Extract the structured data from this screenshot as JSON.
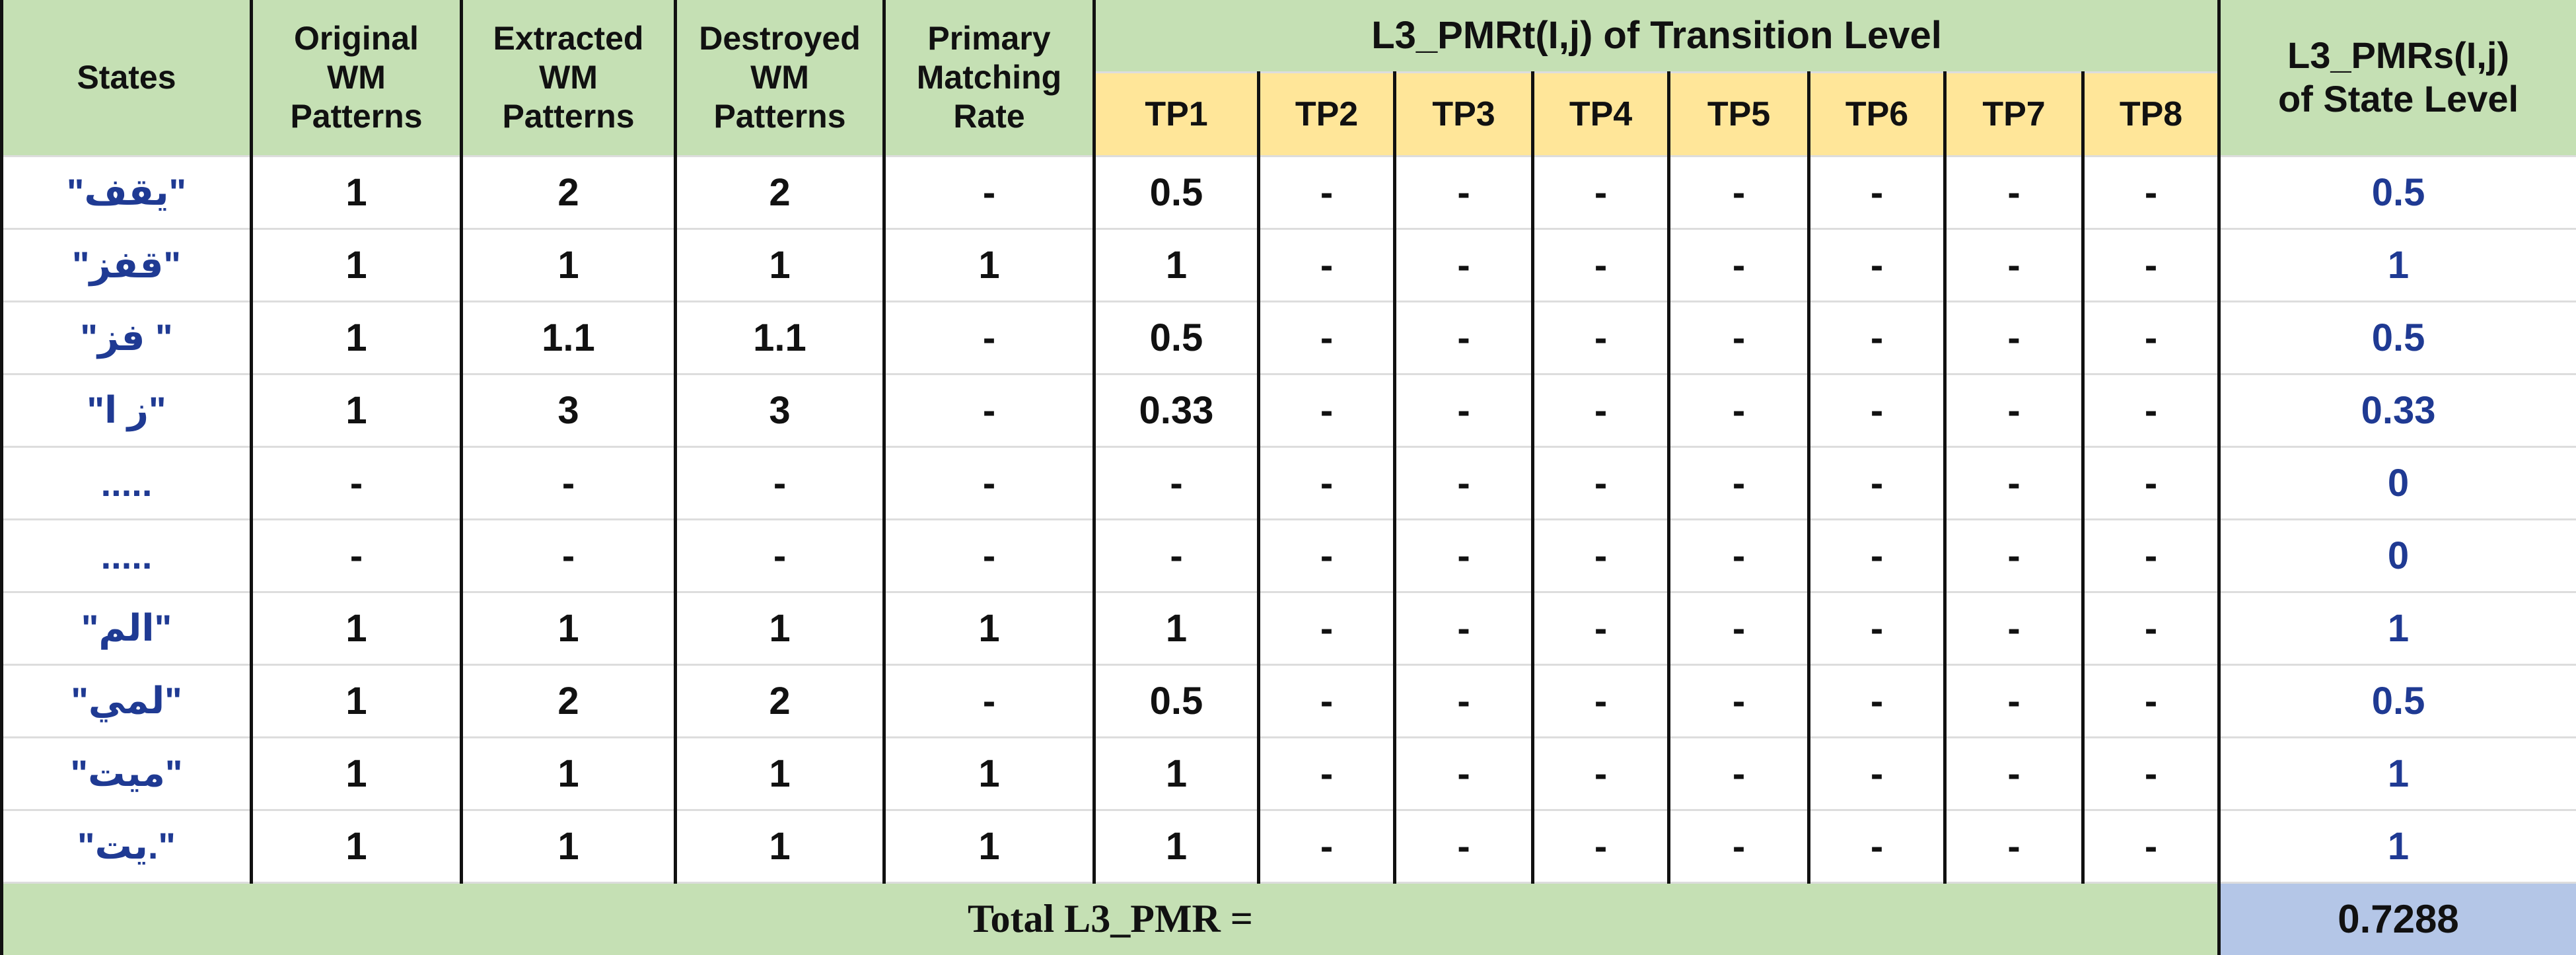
{
  "header": {
    "states": "States",
    "original": "Original\nWM\nPatterns",
    "extracted": "Extracted\nWM\nPatterns",
    "destroyed": "Destroyed\nWM\nPatterns",
    "primary": "Primary\nMatching\nRate",
    "transition": "L3_PMRt(I,j) of Transition Level",
    "state_level": "L3_PMRs(I,j)\nof State Level",
    "tps": [
      "TP1",
      "TP2",
      "TP3",
      "TP4",
      "TP5",
      "TP6",
      "TP7",
      "TP8"
    ]
  },
  "rows": [
    [
      "\"يقف\"",
      "1",
      "2",
      "2",
      "-",
      "0.5",
      "-",
      "-",
      "-",
      "-",
      "-",
      "-",
      "-",
      "0.5"
    ],
    [
      "\"قفز\"",
      "1",
      "1",
      "1",
      "1",
      "1",
      "-",
      "-",
      "-",
      "-",
      "-",
      "-",
      "-",
      "1"
    ],
    [
      "\"فز \"",
      "1",
      "1.1",
      "1.1",
      "-",
      "0.5",
      "-",
      "-",
      "-",
      "-",
      "-",
      "-",
      "-",
      "0.5"
    ],
    [
      "\"ز ا\"",
      "1",
      "3",
      "3",
      "-",
      "0.33",
      "-",
      "-",
      "-",
      "-",
      "-",
      "-",
      "-",
      "0.33"
    ],
    [
      ".....",
      "-",
      "-",
      "-",
      "-",
      "-",
      "-",
      "-",
      "-",
      "-",
      "-",
      "-",
      "-",
      "0"
    ],
    [
      ".....",
      "-",
      "-",
      "-",
      "-",
      "-",
      "-",
      "-",
      "-",
      "-",
      "-",
      "-",
      "-",
      "0"
    ],
    [
      "\"الم\"",
      "1",
      "1",
      "1",
      "1",
      "1",
      "-",
      "-",
      "-",
      "-",
      "-",
      "-",
      "-",
      "1"
    ],
    [
      "\"لمي\"",
      "1",
      "2",
      "2",
      "-",
      "0.5",
      "-",
      "-",
      "-",
      "-",
      "-",
      "-",
      "-",
      "0.5"
    ],
    [
      "\"ميت\"",
      "1",
      "1",
      "1",
      "1",
      "1",
      "-",
      "-",
      "-",
      "-",
      "-",
      "-",
      "-",
      "1"
    ],
    [
      "\"يت.\"",
      "1",
      "1",
      "1",
      "1",
      "1",
      "-",
      "-",
      "-",
      "-",
      "-",
      "-",
      "-",
      "1"
    ]
  ],
  "total": {
    "label": "Total L3_PMR =",
    "value": "0.7288"
  }
}
